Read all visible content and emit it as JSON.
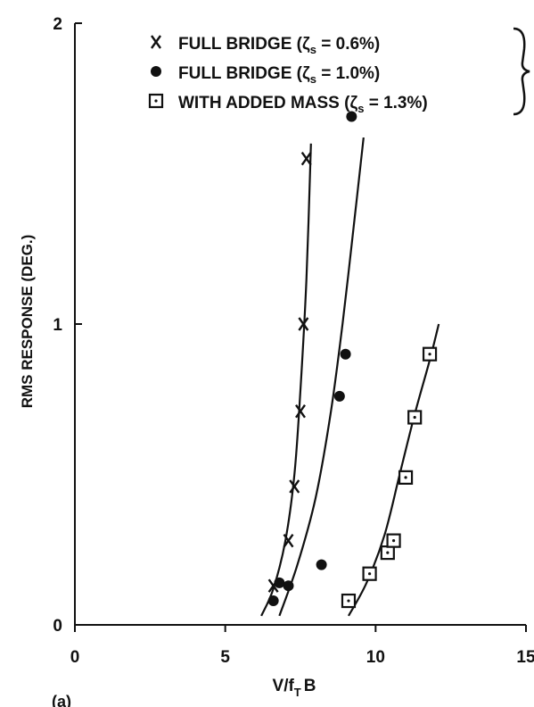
{
  "chart_data": {
    "type": "scatter",
    "xlabel": "V/f",
    "xlabel_sub": "T",
    "xlabel_suffix": "B",
    "ylabel": "RMS RESPONSE (DEG.)",
    "xlim": [
      0,
      15
    ],
    "ylim": [
      0,
      2
    ],
    "xticks": [
      {
        "value": 0,
        "label": "0"
      },
      {
        "value": 5,
        "label": "5"
      },
      {
        "value": 10,
        "label": "10"
      },
      {
        "value": 15,
        "label": "15"
      }
    ],
    "yticks": [
      {
        "value": 0,
        "label": "0"
      },
      {
        "value": 1,
        "label": "1"
      },
      {
        "value": 2,
        "label": "2"
      }
    ],
    "panel_label": "(a)",
    "legend": {
      "placement": "top",
      "entries": [
        {
          "marker": "x",
          "prefix": "FULL BRIDGE  (",
          "zeta": "ζ",
          "sub": "s",
          "suffix": "  =  0.6%)"
        },
        {
          "marker": "dot",
          "prefix": "FULL BRIDGE  (",
          "zeta": "ζ",
          "sub": "s",
          "suffix": "  =  1.0%)"
        },
        {
          "marker": "square",
          "prefix": "WITH ADDED MASS (",
          "zeta": "ζ",
          "sub": "s",
          "suffix": "  =  1.3%)"
        }
      ]
    },
    "series": [
      {
        "marker": "x",
        "points": [
          [
            6.6,
            0.13
          ],
          [
            7.1,
            0.28
          ],
          [
            7.3,
            0.46
          ],
          [
            7.5,
            0.71
          ],
          [
            7.6,
            1.0
          ],
          [
            7.7,
            1.55
          ]
        ],
        "curve": [
          [
            6.2,
            0.03
          ],
          [
            6.6,
            0.12
          ],
          [
            7.0,
            0.28
          ],
          [
            7.3,
            0.5
          ],
          [
            7.5,
            0.78
          ],
          [
            7.7,
            1.15
          ],
          [
            7.85,
            1.6
          ]
        ]
      },
      {
        "marker": "dot",
        "points": [
          [
            6.6,
            0.08
          ],
          [
            6.8,
            0.14
          ],
          [
            7.1,
            0.13
          ],
          [
            8.2,
            0.2
          ],
          [
            8.8,
            0.76
          ],
          [
            9.0,
            0.9
          ],
          [
            9.2,
            1.69
          ]
        ],
        "curve": [
          [
            6.8,
            0.03
          ],
          [
            7.4,
            0.2
          ],
          [
            8.0,
            0.42
          ],
          [
            8.5,
            0.7
          ],
          [
            8.9,
            1.0
          ],
          [
            9.3,
            1.35
          ],
          [
            9.6,
            1.62
          ]
        ]
      },
      {
        "marker": "square",
        "points": [
          [
            9.1,
            0.08
          ],
          [
            9.8,
            0.17
          ],
          [
            10.4,
            0.24
          ],
          [
            10.6,
            0.28
          ],
          [
            11.0,
            0.49
          ],
          [
            11.3,
            0.69
          ],
          [
            11.8,
            0.9
          ]
        ],
        "curve": [
          [
            9.1,
            0.03
          ],
          [
            9.7,
            0.14
          ],
          [
            10.3,
            0.3
          ],
          [
            10.8,
            0.5
          ],
          [
            11.3,
            0.7
          ],
          [
            11.8,
            0.88
          ],
          [
            12.1,
            1.0
          ]
        ]
      }
    ]
  }
}
